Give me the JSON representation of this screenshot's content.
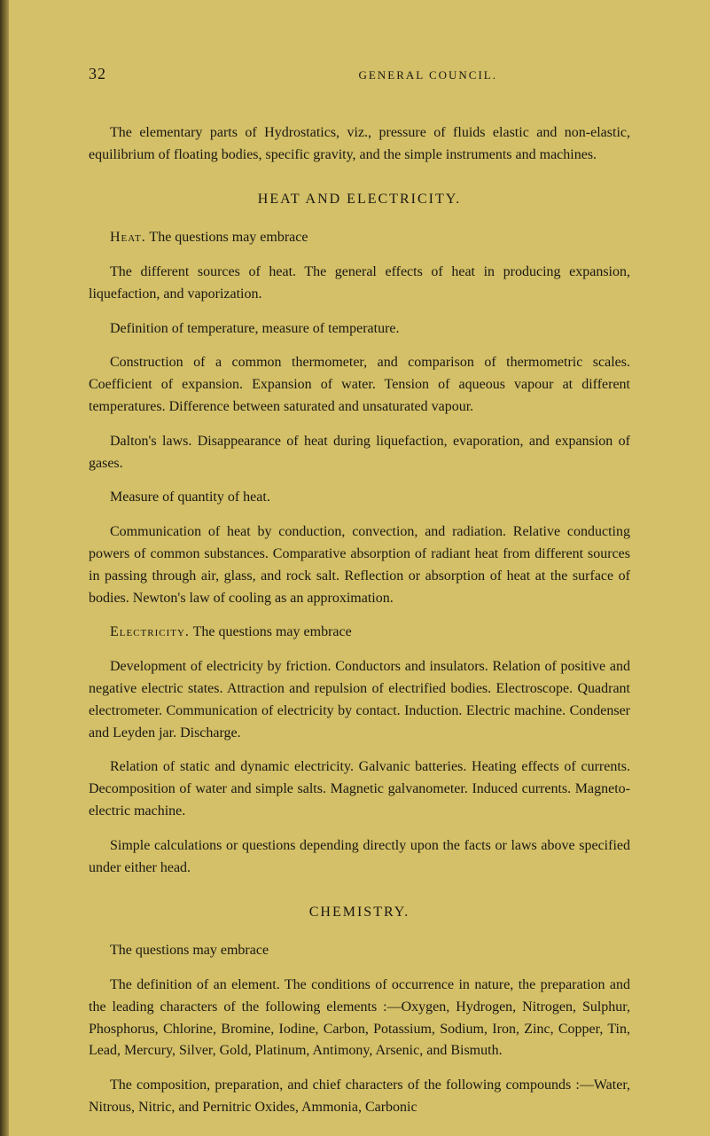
{
  "page_number": "32",
  "running_head": "GENERAL COUNCIL.",
  "intro_para": "The elementary parts of Hydrostatics, viz., pressure of fluids elastic and non-elastic, equilibrium of floating bodies, specific gravity, and the simple instruments and machines.",
  "heat_electricity_title": "HEAT AND ELECTRICITY.",
  "heat_label": "Heat.",
  "heat_intro": "  The questions may embrace",
  "heat_p1": "The different sources of heat. The general effects of heat in producing expansion, liquefaction, and vaporization.",
  "heat_p2": "Definition of temperature, measure of temperature.",
  "heat_p3": "Construction of a common thermometer, and comparison of thermometric scales. Coefficient of expansion. Expansion of water. Tension of aqueous vapour at different temperatures. Difference between saturated and unsaturated vapour.",
  "heat_p4": "Dalton's laws. Disappearance of heat during liquefaction, evaporation, and expansion of gases.",
  "heat_p5": "Measure of quantity of heat.",
  "heat_p6": "Communication of heat by conduction, convection, and radiation. Relative conducting powers of common substances. Comparative absorption of radiant heat from different sources in passing through air, glass, and rock salt. Reflection or absorption of heat at the surface of bodies. Newton's law of cooling as an approximation.",
  "elec_label": "Electricity.",
  "elec_intro": "  The questions may embrace",
  "elec_p1": "Development of electricity by friction. Conductors and insulators. Relation of positive and negative electric states. Attraction and repulsion of electrified bodies. Electroscope. Quadrant electrometer. Communication of electricity by contact. Induction. Electric machine. Condenser and Leyden jar. Discharge.",
  "elec_p2": "Relation of static and dynamic electricity. Galvanic batteries. Heating effects of currents. Decomposition of water and simple salts. Magnetic galvanometer. Induced currents. Magneto-electric machine.",
  "elec_p3": "Simple calculations or questions depending directly upon the facts or laws above specified under either head.",
  "chemistry_title": "CHEMISTRY.",
  "chem_p1": "The questions may embrace",
  "chem_p2": "The definition of an element. The conditions of occurrence in nature, the preparation and the leading characters of the following elements :—Oxygen, Hydrogen, Nitrogen, Sulphur, Phosphorus, Chlorine, Bromine, Iodine, Carbon, Potassium, Sodium, Iron, Zinc, Copper, Tin, Lead, Mercury, Silver, Gold, Platinum, Antimony, Arsenic, and Bismuth.",
  "chem_p3": "The composition, preparation, and chief characters of the following compounds :—Water, Nitrous, Nitric, and Pernitric Oxides, Ammonia, Carbonic"
}
